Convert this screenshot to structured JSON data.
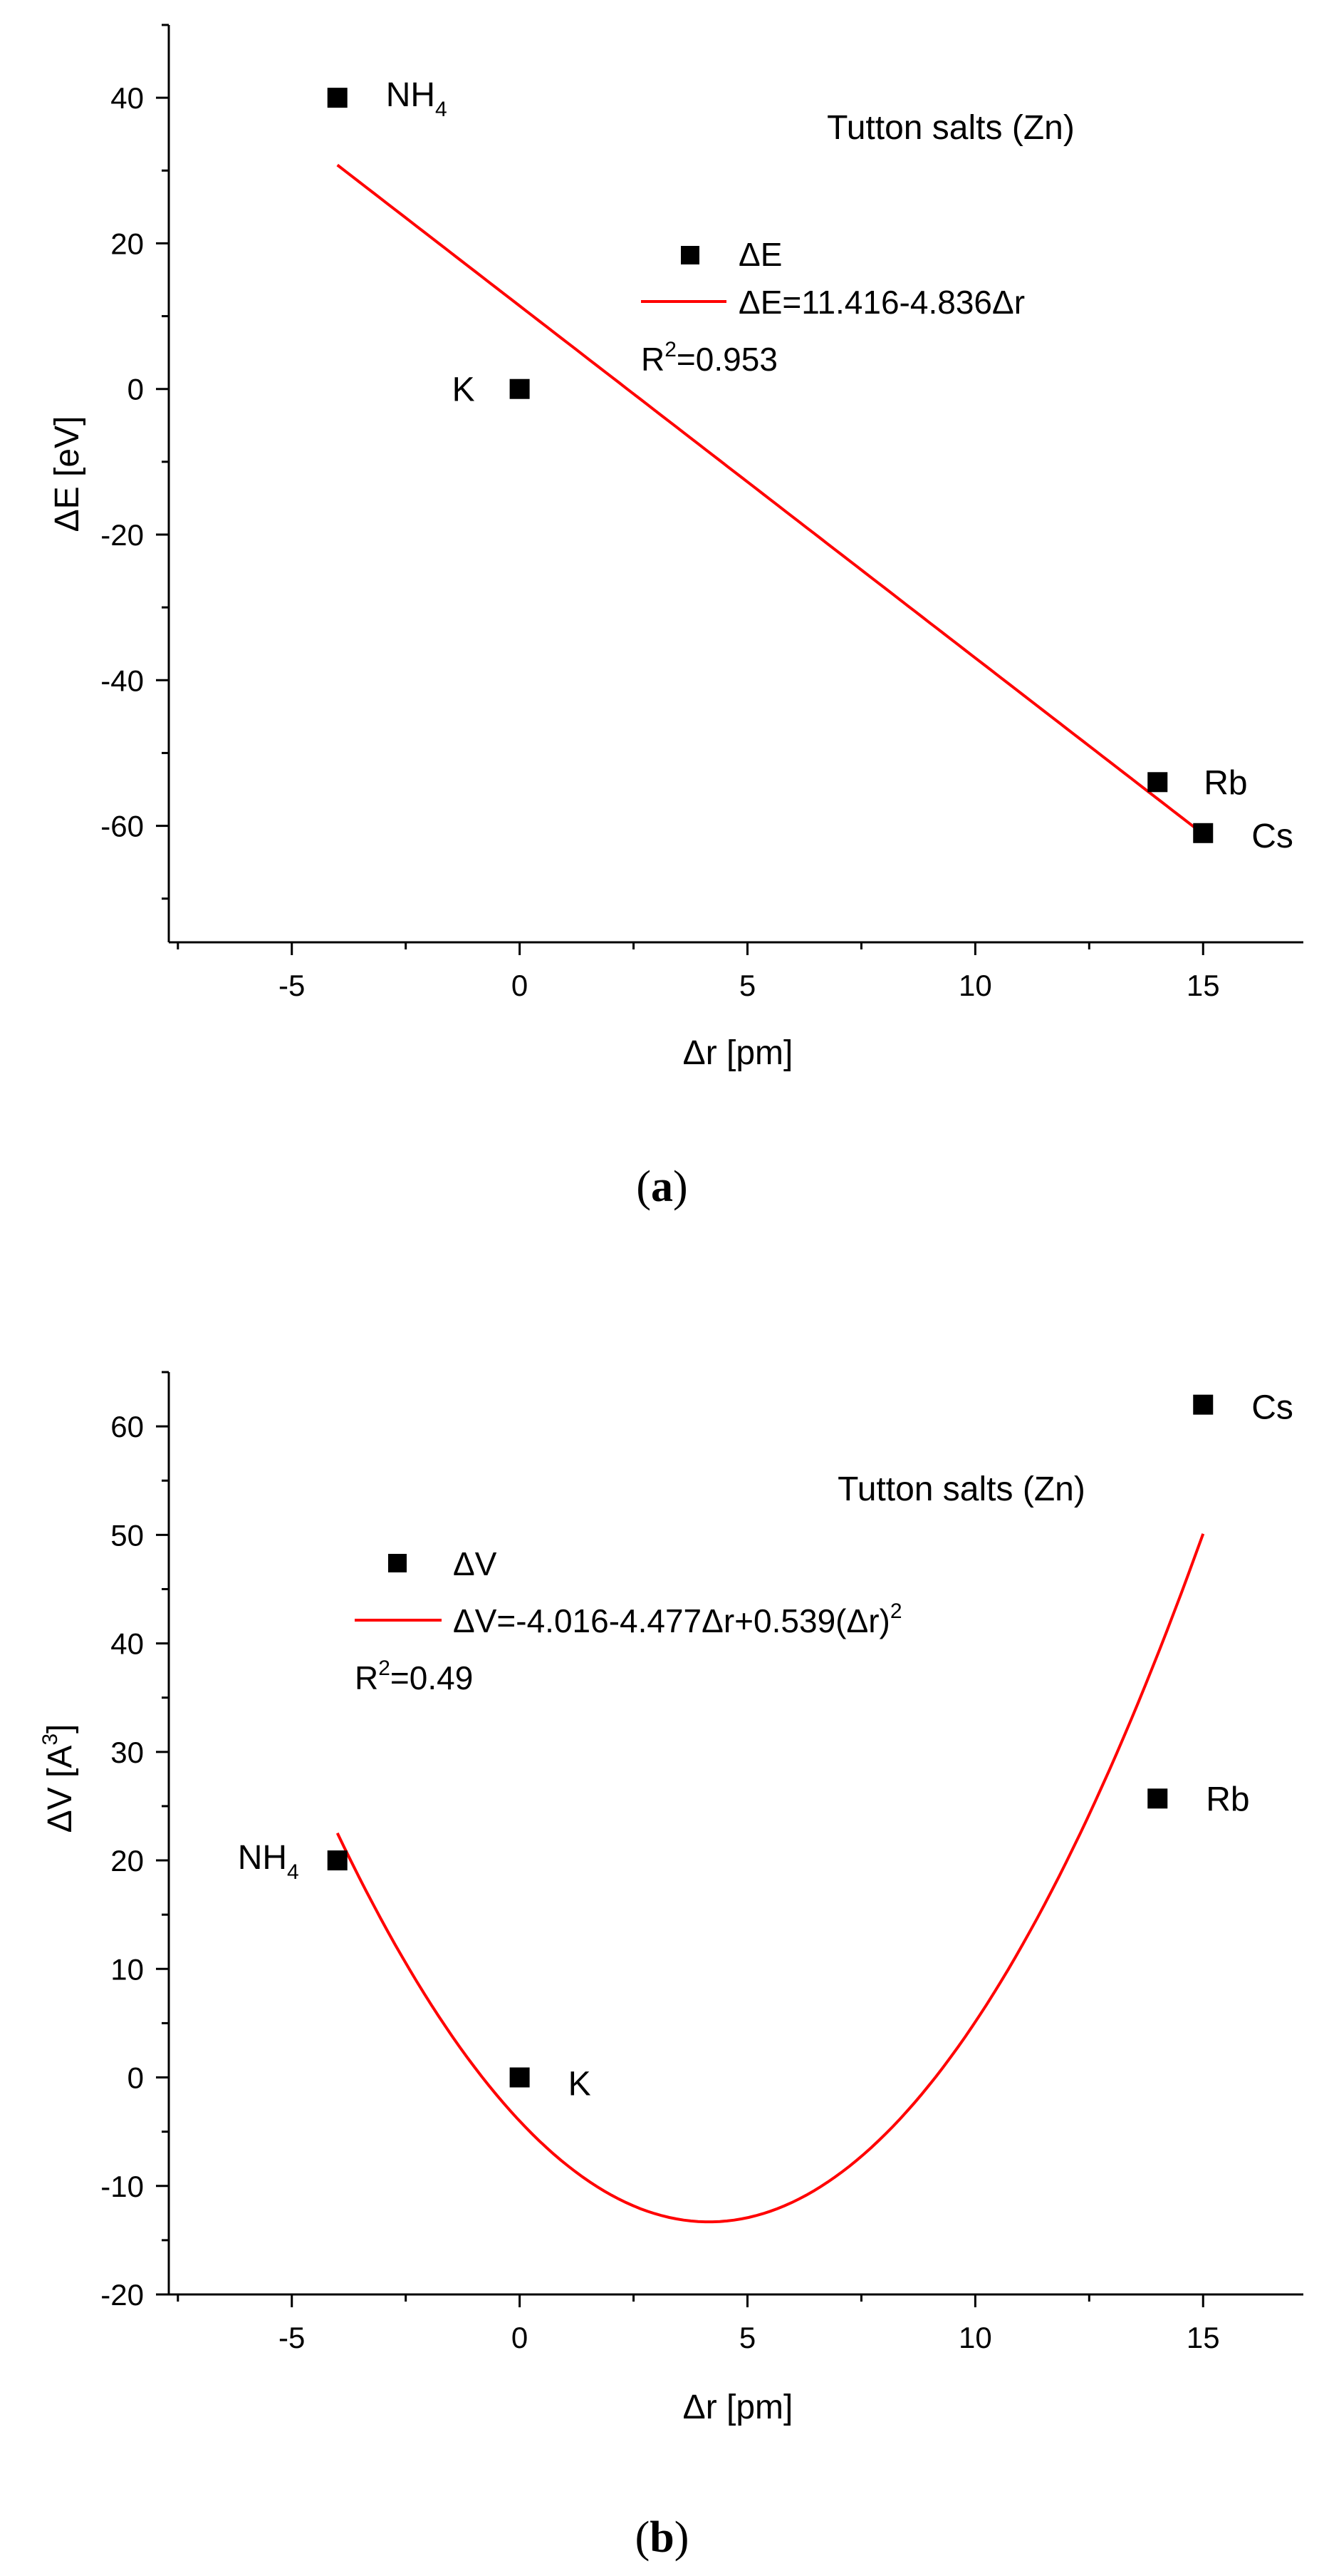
{
  "chart_data": [
    {
      "type": "scatter",
      "panel": "a",
      "caption_letter": "a",
      "title": "Tutton salts (Zn)",
      "xlabel": "Δr [pm]",
      "ylabel": "ΔE [eV]",
      "xlim": [
        -7.7,
        17.2
      ],
      "ylim": [
        -76,
        50
      ],
      "xticks": [
        -5,
        0,
        5,
        10,
        15
      ],
      "xtick_labels": [
        "-5",
        "0",
        "5",
        "10",
        "15"
      ],
      "yticks": [
        -60,
        -40,
        -20,
        0,
        20,
        40
      ],
      "ytick_labels": [
        "-60",
        "-40",
        "-20",
        "0",
        "20",
        "40"
      ],
      "grid": false,
      "legend_position": "top-center",
      "series": [
        {
          "name": "ΔE",
          "marker": "square",
          "color": "#000000",
          "points": [
            {
              "x": -4,
              "y": 40,
              "label_main": "NH",
              "label_sub": "4"
            },
            {
              "x": 0,
              "y": 0,
              "label_main": "K",
              "label_sub": ""
            },
            {
              "x": 14,
              "y": -54,
              "label_main": "Rb",
              "label_sub": ""
            },
            {
              "x": 15,
              "y": -61,
              "label_main": "Cs",
              "label_sub": ""
            }
          ]
        }
      ],
      "fit": {
        "type": "linear",
        "color": "#ff0000",
        "coefficients": [
          11.416,
          -4.836
        ],
        "x_range": [
          -4,
          15
        ],
        "legend_label": "ΔE=11.416-4.836Δr",
        "r2_main": "R",
        "r2_sup": "2",
        "r2_value": "=0.953"
      }
    },
    {
      "type": "scatter",
      "panel": "b",
      "caption_letter": "b",
      "title": "Tutton salts (Zn)",
      "xlabel": "Δr [pm]",
      "ylabel_main": "ΔV [A",
      "ylabel_sup": "3",
      "ylabel_end": "]",
      "xlim": [
        -7.7,
        17.2
      ],
      "ylim": [
        -20,
        65
      ],
      "xticks": [
        -5,
        0,
        5,
        10,
        15
      ],
      "xtick_labels": [
        "-5",
        "0",
        "5",
        "10",
        "15"
      ],
      "yticks": [
        -20,
        -10,
        0,
        10,
        20,
        30,
        40,
        50,
        60
      ],
      "ytick_labels": [
        "-20",
        "-10",
        "0",
        "10",
        "20",
        "30",
        "40",
        "50",
        "60"
      ],
      "grid": false,
      "legend_position": "top-left",
      "series": [
        {
          "name": "ΔV",
          "marker": "square",
          "color": "#000000",
          "points": [
            {
              "x": -4,
              "y": 20,
              "label_main": "NH",
              "label_sub": "4"
            },
            {
              "x": 0,
              "y": 0,
              "label_main": "K",
              "label_sub": ""
            },
            {
              "x": 14,
              "y": 25.7,
              "label_main": "Rb",
              "label_sub": ""
            },
            {
              "x": 15,
              "y": 62,
              "label_main": "Cs",
              "label_sub": ""
            }
          ]
        }
      ],
      "fit": {
        "type": "quadratic",
        "color": "#ff0000",
        "coefficients": [
          -4.016,
          -4.477,
          0.539
        ],
        "x_range": [
          -4,
          15
        ],
        "legend_label_main": "ΔV=-4.016-4.477Δr+0.539(Δr)",
        "legend_label_sup": "2",
        "r2_main": "R",
        "r2_sup": "2",
        "r2_value": "=0.49"
      }
    }
  ]
}
